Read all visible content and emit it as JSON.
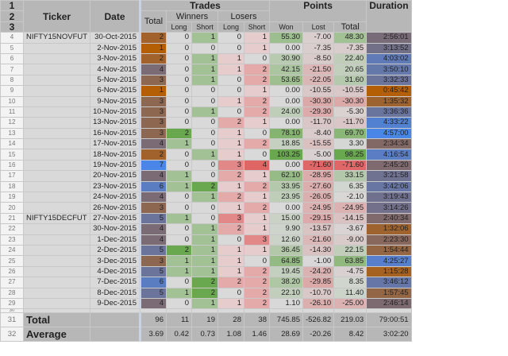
{
  "headers": {
    "ticker": "Ticker",
    "date": "Date",
    "trades": "Trades",
    "total": "Total",
    "winners": "Winners",
    "losers": "Losers",
    "long": "Long",
    "short": "Short",
    "points": "Points",
    "won": "Won",
    "lost": "Lost",
    "points_total": "Total",
    "duration": "Duration"
  },
  "rows": [
    {
      "ticker": "NIFTY15NOVFUT",
      "date": "30-Oct-2015",
      "total": 2,
      "wl": 0,
      "ws": 1,
      "ll": 0,
      "ls": 1,
      "won": "55.30",
      "lost": "-7.00",
      "ptotal": "48.30",
      "duration": "2:56:01"
    },
    {
      "ticker": "",
      "date": "2-Nov-2015",
      "total": 1,
      "wl": 0,
      "ws": 0,
      "ll": 0,
      "ls": 1,
      "won": "0.00",
      "lost": "-7.35",
      "ptotal": "-7.35",
      "duration": "3:13:52"
    },
    {
      "ticker": "",
      "date": "3-Nov-2015",
      "total": 2,
      "wl": 0,
      "ws": 1,
      "ll": 1,
      "ls": 0,
      "won": "30.90",
      "lost": "-8.50",
      "ptotal": "22.40",
      "duration": "4:03:02"
    },
    {
      "ticker": "",
      "date": "4-Nov-2015",
      "total": 4,
      "wl": 0,
      "ws": 1,
      "ll": 1,
      "ls": 2,
      "won": "42.15",
      "lost": "-21.50",
      "ptotal": "20.65",
      "duration": "3:50:10"
    },
    {
      "ticker": "",
      "date": "5-Nov-2015",
      "total": 3,
      "wl": 0,
      "ws": 1,
      "ll": 0,
      "ls": 2,
      "won": "53.65",
      "lost": "-22.05",
      "ptotal": "31.60",
      "duration": "3:32:33"
    },
    {
      "ticker": "",
      "date": "6-Nov-2015",
      "total": 1,
      "wl": 0,
      "ws": 0,
      "ll": 0,
      "ls": 1,
      "won": "0.00",
      "lost": "-10.55",
      "ptotal": "-10.55",
      "duration": "0:45:42"
    },
    {
      "ticker": "",
      "date": "9-Nov-2015",
      "total": 3,
      "wl": 0,
      "ws": 0,
      "ll": 1,
      "ls": 2,
      "won": "0.00",
      "lost": "-30.30",
      "ptotal": "-30.30",
      "duration": "1:35:32"
    },
    {
      "ticker": "",
      "date": "10-Nov-2015",
      "total": 3,
      "wl": 0,
      "ws": 1,
      "ll": 0,
      "ls": 2,
      "won": "24.00",
      "lost": "-29.30",
      "ptotal": "-5.30",
      "duration": "3:36:36"
    },
    {
      "ticker": "",
      "date": "13-Nov-2015",
      "total": 3,
      "wl": 0,
      "ws": 0,
      "ll": 2,
      "ls": 1,
      "won": "0.00",
      "lost": "-11.70",
      "ptotal": "-11.70",
      "duration": "4:33:22"
    },
    {
      "ticker": "",
      "date": "16-Nov-2015",
      "total": 3,
      "wl": 2,
      "ws": 0,
      "ll": 1,
      "ls": 0,
      "won": "78.10",
      "lost": "-8.40",
      "ptotal": "69.70",
      "duration": "4:57:00"
    },
    {
      "ticker": "",
      "date": "17-Nov-2015",
      "total": 4,
      "wl": 1,
      "ws": 0,
      "ll": 1,
      "ls": 2,
      "won": "18.85",
      "lost": "-15.55",
      "ptotal": "3.30",
      "duration": "2:34:34"
    },
    {
      "ticker": "",
      "date": "18-Nov-2015",
      "total": 2,
      "wl": 0,
      "ws": 1,
      "ll": 1,
      "ls": 0,
      "won": "103.25",
      "lost": "-5.00",
      "ptotal": "98.25",
      "duration": "4:16:54"
    },
    {
      "ticker": "",
      "date": "19-Nov-2015",
      "total": 7,
      "wl": 0,
      "ws": 0,
      "ll": 3,
      "ls": 4,
      "won": "0.00",
      "lost": "-71.60",
      "ptotal": "-71.60",
      "duration": "2:45:20"
    },
    {
      "ticker": "",
      "date": "20-Nov-2015",
      "total": 4,
      "wl": 1,
      "ws": 0,
      "ll": 2,
      "ls": 1,
      "won": "62.10",
      "lost": "-28.95",
      "ptotal": "33.15",
      "duration": "3:21:58"
    },
    {
      "ticker": "",
      "date": "23-Nov-2015",
      "total": 6,
      "wl": 1,
      "ws": 2,
      "ll": 1,
      "ls": 2,
      "won": "33.95",
      "lost": "-27.60",
      "ptotal": "6.35",
      "duration": "3:42:06"
    },
    {
      "ticker": "",
      "date": "24-Nov-2015",
      "total": 4,
      "wl": 0,
      "ws": 1,
      "ll": 2,
      "ls": 1,
      "won": "23.95",
      "lost": "-26.05",
      "ptotal": "-2.10",
      "duration": "3:19:43"
    },
    {
      "ticker": "",
      "date": "26-Nov-2015",
      "total": 3,
      "wl": 0,
      "ws": 0,
      "ll": 1,
      "ls": 2,
      "won": "0.00",
      "lost": "-24.95",
      "ptotal": "-24.95",
      "duration": "3:14:26"
    },
    {
      "ticker": "NIFTY15DECFUT",
      "date": "27-Nov-2015",
      "total": 5,
      "wl": 1,
      "ws": 0,
      "ll": 3,
      "ls": 1,
      "won": "15.00",
      "lost": "-29.15",
      "ptotal": "-14.15",
      "duration": "2:40:34"
    },
    {
      "ticker": "",
      "date": "30-Nov-2015",
      "total": 4,
      "wl": 0,
      "ws": 1,
      "ll": 2,
      "ls": 1,
      "won": "9.90",
      "lost": "-13.57",
      "ptotal": "-3.67",
      "duration": "1:32:06"
    },
    {
      "ticker": "",
      "date": "1-Dec-2015",
      "total": 4,
      "wl": 0,
      "ws": 1,
      "ll": 0,
      "ls": 3,
      "won": "12.60",
      "lost": "-21.60",
      "ptotal": "-9.00",
      "duration": "2:23:30"
    },
    {
      "ticker": "",
      "date": "2-Dec-2015",
      "total": 5,
      "wl": 2,
      "ws": 1,
      "ll": 1,
      "ls": 1,
      "won": "36.45",
      "lost": "-14.30",
      "ptotal": "22.15",
      "duration": "1:54:44"
    },
    {
      "ticker": "",
      "date": "3-Dec-2015",
      "total": 3,
      "wl": 1,
      "ws": 1,
      "ll": 1,
      "ls": 0,
      "won": "64.85",
      "lost": "-1.00",
      "ptotal": "63.85",
      "duration": "4:25:27"
    },
    {
      "ticker": "",
      "date": "4-Dec-2015",
      "total": 5,
      "wl": 1,
      "ws": 1,
      "ll": 1,
      "ls": 2,
      "won": "19.45",
      "lost": "-24.20",
      "ptotal": "-4.75",
      "duration": "1:15:28"
    },
    {
      "ticker": "",
      "date": "7-Dec-2015",
      "total": 6,
      "wl": 0,
      "ws": 2,
      "ll": 2,
      "ls": 2,
      "won": "38.20",
      "lost": "-29.85",
      "ptotal": "8.35",
      "duration": "3:46:12"
    },
    {
      "ticker": "",
      "date": "8-Dec-2015",
      "total": 5,
      "wl": 1,
      "ws": 2,
      "ll": 0,
      "ls": 2,
      "won": "22.10",
      "lost": "-10.70",
      "ptotal": "11.40",
      "duration": "1:57:45"
    },
    {
      "ticker": "",
      "date": "9-Dec-2015",
      "total": 4,
      "wl": 0,
      "ws": 1,
      "ll": 1,
      "ls": 2,
      "won": "1.10",
      "lost": "-26.10",
      "ptotal": "-25.00",
      "duration": "2:46:14"
    }
  ],
  "summary": [
    {
      "label": "Total",
      "vals": [
        "96",
        "11",
        "19",
        "28",
        "38",
        "745.85",
        "-526.82",
        "219.03",
        "79:00:51"
      ]
    },
    {
      "label": "Average",
      "vals": [
        "3.69",
        "0.42",
        "0.73",
        "1.08",
        "1.46",
        "28.69",
        "-20.26",
        "8.42",
        "3:02:20"
      ]
    }
  ],
  "colors": {
    "header": "#b7b7b7",
    "neutral": "#d9d9d9",
    "green": "#6aa84f",
    "red": "#e06666",
    "orange": "#b45f06",
    "blue": "#4a86e8"
  }
}
